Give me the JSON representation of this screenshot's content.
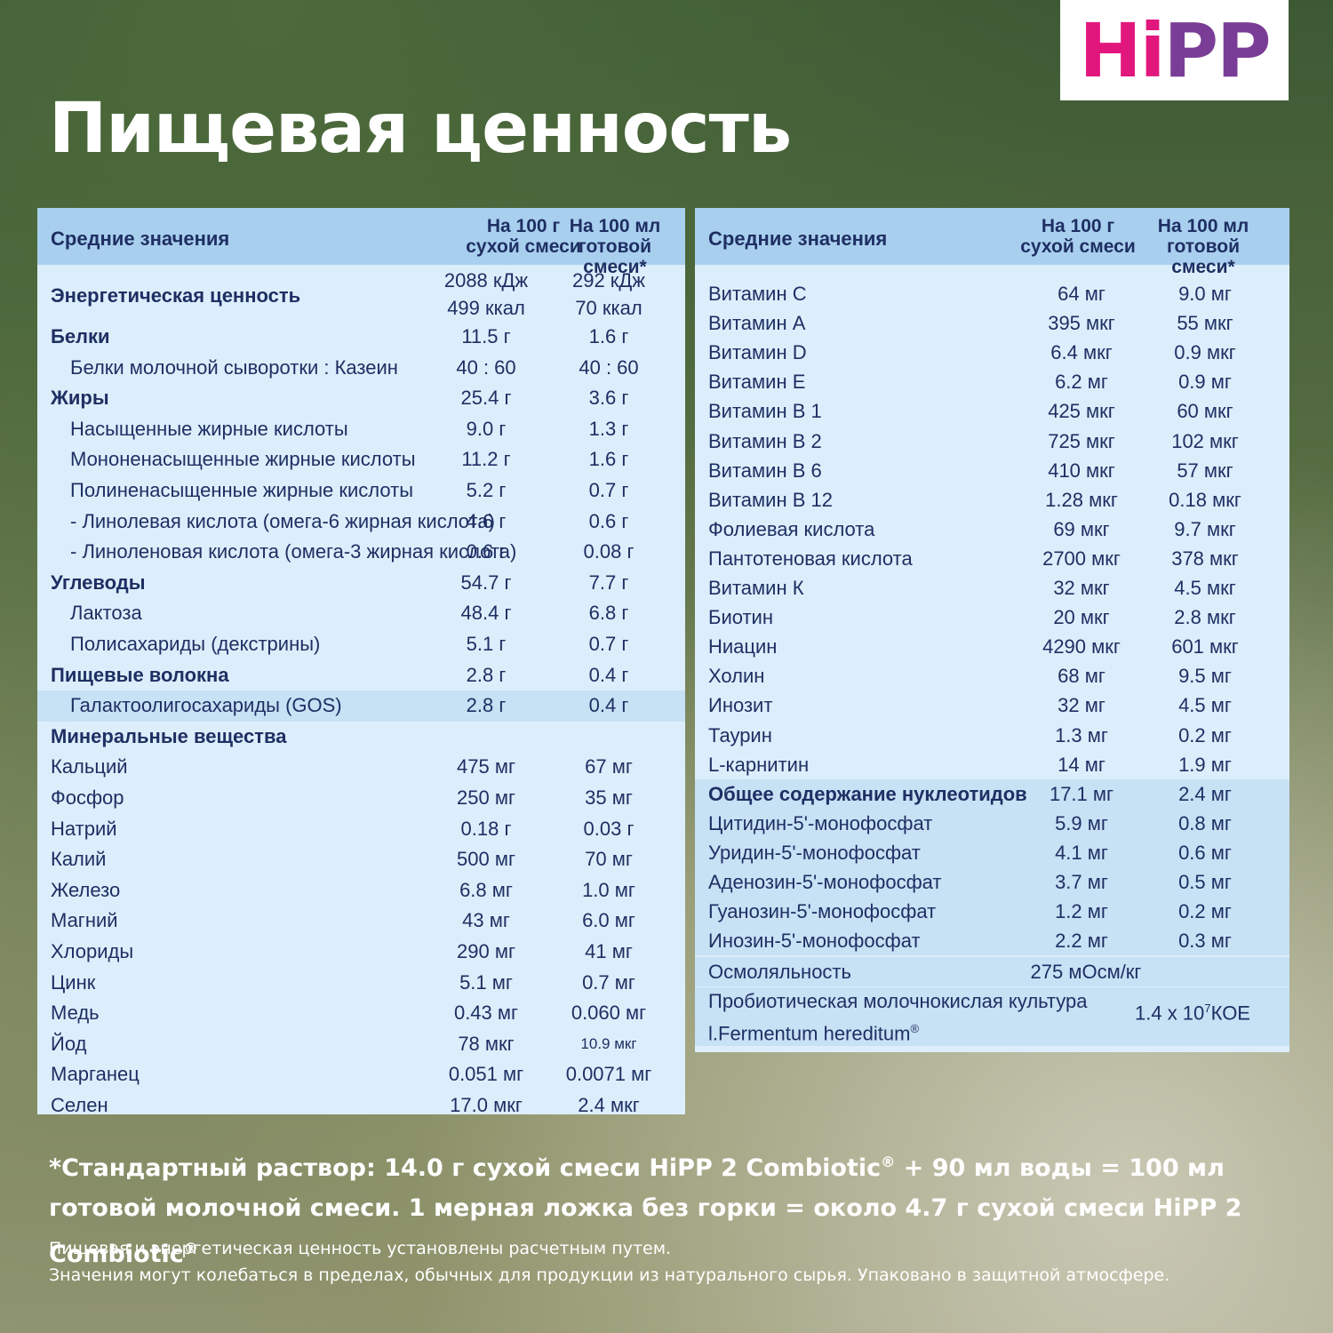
{
  "logo": {
    "h": "H",
    "i": "i",
    "p1": "P",
    "p2": "P"
  },
  "title": "Пищевая ценность",
  "left_table": {
    "header": {
      "label": "Средние значения",
      "col1_a": "На 100 г",
      "col1_b": "сухой смеси",
      "col2_a": "На 100 мл",
      "col2_b": "готовой смеси*"
    },
    "rows": [
      {
        "label": "Энергетическая ценность",
        "v1": "2088 кДж",
        "v2": "292 кДж",
        "v1b": "499 ккал",
        "v2b": "70 ккал",
        "bold": true
      },
      {
        "label": "Белки",
        "v1": "11.5 г",
        "v2": "1.6 г",
        "bold": true
      },
      {
        "label": "Белки молочной сыворотки : Казеин",
        "v1": "40 : 60",
        "v2": "40 : 60",
        "ind": true
      },
      {
        "label": "Жиры",
        "v1": "25.4 г",
        "v2": "3.6 г",
        "bold": true
      },
      {
        "label": "Насыщенные жирные кислоты",
        "v1": "9.0 г",
        "v2": "1.3 г",
        "ind": true
      },
      {
        "label": "Мононенасыщенные жирные кислоты",
        "v1": "11.2 г",
        "v2": "1.6 г",
        "ind": true
      },
      {
        "label": "Полиненасыщенные жирные кислоты",
        "v1": "5.2 г",
        "v2": "0.7 г",
        "ind": true
      },
      {
        "label": "- Линолевая кислота (омега-6 жирная кислота)",
        "v1": "4.6 г",
        "v2": "0.6 г",
        "ind": true
      },
      {
        "label": "- Линоленовая кислота (омега-3 жирная кислота)",
        "v1": "0.6 г",
        "v2": "0.08 г",
        "ind": true
      },
      {
        "label": "Углеводы",
        "v1": "54.7 г",
        "v2": "7.7 г",
        "bold": true
      },
      {
        "label": "Лактоза",
        "v1": "48.4 г",
        "v2": "6.8 г",
        "ind": true
      },
      {
        "label": "Полисахариды (декстрины)",
        "v1": "5.1 г",
        "v2": "0.7 г",
        "ind": true
      },
      {
        "label": "Пищевые волокна",
        "v1": "2.8 г",
        "v2": "0.4 г",
        "bold": true
      },
      {
        "label": "Галактоолигосахариды (GOS)",
        "v1": "2.8 г",
        "v2": "0.4 г",
        "ind": true,
        "hl": true
      },
      {
        "label": "Минеральные вещества",
        "v1": "",
        "v2": "",
        "bold": true
      },
      {
        "label": "Кальций",
        "v1": "475 мг",
        "v2": "67 мг"
      },
      {
        "label": "Фосфор",
        "v1": "250 мг",
        "v2": "35 мг"
      },
      {
        "label": "Натрий",
        "v1": "0.18 г",
        "v2": "0.03 г"
      },
      {
        "label": "Калий",
        "v1": "500 мг",
        "v2": "70 мг"
      },
      {
        "label": "Железо",
        "v1": "6.8 мг",
        "v2": "1.0 мг"
      },
      {
        "label": "Магний",
        "v1": "43 мг",
        "v2": "6.0 мг"
      },
      {
        "label": "Хлориды",
        "v1": "290 мг",
        "v2": "41 мг"
      },
      {
        "label": "Цинк",
        "v1": "5.1 мг",
        "v2": "0.7 мг"
      },
      {
        "label": "Медь",
        "v1": "0.43 мг",
        "v2": "0.060 мг"
      },
      {
        "label": "Йод",
        "v1": "78 мкг",
        "v2": "10.9 мкг",
        "small2": true
      },
      {
        "label": "Марганец",
        "v1": "0.051 мг",
        "v2": "0.0071 мг"
      },
      {
        "label": "Селен",
        "v1": "17.0 мкг",
        "v2": "2.4 мкг"
      }
    ]
  },
  "right_table": {
    "header": {
      "label": "Средние значения",
      "col1_a": "На 100 г",
      "col1_b": "сухой смеси",
      "col2_a": "На 100 мл",
      "col2_b": "готовой смеси*"
    },
    "rows": [
      {
        "label": "Витамин С",
        "v1": "64 мг",
        "v2": "9.0 мг"
      },
      {
        "label": "Витамин А",
        "v1": "395 мкг",
        "v2": "55 мкг"
      },
      {
        "label": "Витамин D",
        "v1": "6.4 мкг",
        "v2": "0.9 мкг"
      },
      {
        "label": "Витамин Е",
        "v1": "6.2 мг",
        "v2": "0.9 мг"
      },
      {
        "label": "Витамин В 1",
        "v1": "425 мкг",
        "v2": "60 мкг"
      },
      {
        "label": "Витамин В 2",
        "v1": "725 мкг",
        "v2": "102 мкг"
      },
      {
        "label": "Витамин В 6",
        "v1": "410 мкг",
        "v2": "57 мкг"
      },
      {
        "label": "Витамин В 12",
        "v1": "1.28 мкг",
        "v2": "0.18 мкг"
      },
      {
        "label": "Фолиевая кислота",
        "v1": "69 мкг",
        "v2": "9.7 мкг"
      },
      {
        "label": "Пантотеновая кислота",
        "v1": "2700 мкг",
        "v2": "378 мкг"
      },
      {
        "label": "Витамин К",
        "v1": "32 мкг",
        "v2": "4.5 мкг"
      },
      {
        "label": "Биотин",
        "v1": "20 мкг",
        "v2": "2.8 мкг"
      },
      {
        "label": "Ниацин",
        "v1": "4290 мкг",
        "v2": "601 мкг"
      },
      {
        "label": "Холин",
        "v1": "68 мг",
        "v2": "9.5 мг"
      },
      {
        "label": "Инозит",
        "v1": "32 мг",
        "v2": "4.5 мг"
      },
      {
        "label": "Таурин",
        "v1": "1.3 мг",
        "v2": "0.2 мг"
      },
      {
        "label": "L-карнитин",
        "v1": "14 мг",
        "v2": "1.9 мг"
      },
      {
        "label": "Общее содержание нуклеотидов",
        "v1": "17.1 мг",
        "v2": "2.4 мг",
        "bold": true,
        "hl": true
      },
      {
        "label": "Цитидин-5'-монофосфат",
        "v1": "5.9 мг",
        "v2": "0.8 мг",
        "hl": true
      },
      {
        "label": "Уридин-5'-монофосфат",
        "v1": "4.1 мг",
        "v2": "0.6 мг",
        "hl": true
      },
      {
        "label": "Аденозин-5'-монофосфат",
        "v1": "3.7 мг",
        "v2": "0.5 мг",
        "hl": true
      },
      {
        "label": "Гуанозин-5'-монофосфат",
        "v1": "1.2 мг",
        "v2": "0.2 мг",
        "hl": true
      },
      {
        "label": "Инозин-5'-монофосфат",
        "v1": "2.2 мг",
        "v2": "0.3 мг",
        "hl": true
      }
    ],
    "osmolality": {
      "label": "Осмоляльность",
      "value": "275 мОсм/кг"
    },
    "probiotic": {
      "label_1": "Пробиотическая молочнокислая культура",
      "label_2": "l.Fermentum hereditum",
      "reg": "®",
      "value_base": "1.4 x 10",
      "value_exp": "7",
      "value_unit": "КОЕ"
    }
  },
  "footer": {
    "main_1": "*Стандартный раствор: 14.0 г сухой смеси HiPP 2 Combiotic",
    "reg": "®",
    "main_2": " + 90 мл воды  = 100 мл готовой молочной смеси. 1 мерная ложка без горки = около 4.7 г сухой смеси HiPP 2 Combiotic",
    "note_1": "Пищевая и энергетическая ценность установлены расчетным путем.",
    "note_2": "Значения могут колебаться в пределах, обычных для продукции из натурального сырья. Упаковано в защитной атмосфере."
  }
}
